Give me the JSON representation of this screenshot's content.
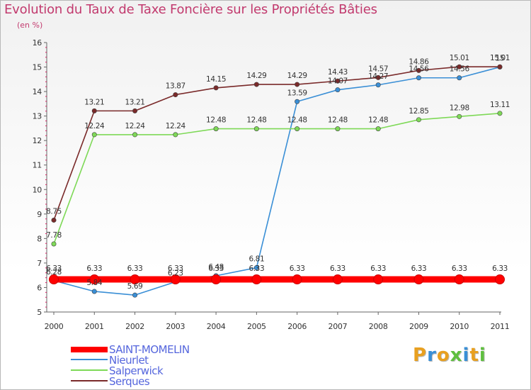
{
  "chart_data": {
    "type": "line",
    "title": "Evolution du Taux de Taxe Foncière sur les Propriétés Bâties",
    "ylabel": "(en %)",
    "xlabel": "",
    "x": [
      "2000",
      "2001",
      "2002",
      "2003",
      "2004",
      "2005",
      "2006",
      "2007",
      "2008",
      "2009",
      "2010",
      "2011"
    ],
    "ylim": [
      5,
      16
    ],
    "yticks": [
      5,
      6,
      7,
      8,
      9,
      10,
      11,
      12,
      13,
      14,
      15,
      16
    ],
    "grid": false,
    "legend_position": "bottom-left",
    "series": [
      {
        "name": "SAINT-MOMELIN",
        "color": "#ff0000",
        "values": [
          6.33,
          6.33,
          6.33,
          6.33,
          6.33,
          6.33,
          6.33,
          6.33,
          6.33,
          6.33,
          6.33,
          6.33
        ],
        "labels": [
          "6.33",
          "6.33",
          "6.33",
          "6.33",
          "6.33",
          "6.33",
          "6.33",
          "6.33",
          "6.33",
          "6.33",
          "6.33",
          "6.33"
        ]
      },
      {
        "name": "Nieurlet",
        "color": "#3a8fd6",
        "values": [
          6.28,
          5.84,
          5.69,
          6.23,
          6.48,
          6.81,
          13.59,
          14.07,
          14.27,
          14.56,
          14.56,
          15.0
        ],
        "labels": [
          "6.28",
          "5.84",
          "5.69",
          "6.23",
          "6.48",
          "6.81",
          "13.59",
          "14.07",
          "14.27",
          "14.56",
          "14.56",
          "15"
        ]
      },
      {
        "name": "Salperwick",
        "color": "#7ed957",
        "values": [
          7.78,
          12.24,
          12.24,
          12.24,
          12.48,
          12.48,
          12.48,
          12.48,
          12.48,
          12.85,
          12.98,
          13.11
        ],
        "labels": [
          "7.78",
          "12.24",
          "12.24",
          "12.24",
          "12.48",
          "12.48",
          "12.48",
          "12.48",
          "12.48",
          "12.85",
          "12.98",
          "13.11"
        ]
      },
      {
        "name": "Serques",
        "color": "#7a2a2a",
        "values": [
          8.75,
          13.21,
          13.21,
          13.87,
          14.15,
          14.29,
          14.29,
          14.43,
          14.57,
          14.86,
          15.01,
          15.01
        ],
        "labels": [
          "8.75",
          "13.21",
          "13.21",
          "13.87",
          "14.15",
          "14.29",
          "14.29",
          "14.43",
          "14.57",
          "14.86",
          "15.01",
          "15.01"
        ]
      }
    ]
  },
  "logo": {
    "text": "Proxiti"
  }
}
